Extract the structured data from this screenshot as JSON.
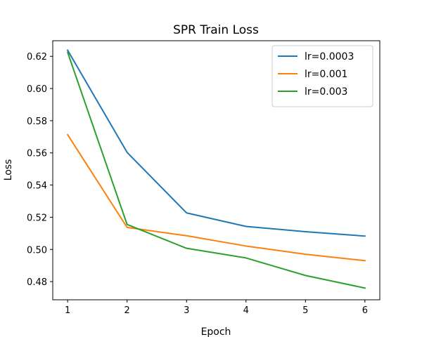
{
  "chart_data": {
    "type": "line",
    "title": "SPR Train Loss",
    "xlabel": "Epoch",
    "ylabel": "Loss",
    "x": [
      1,
      2,
      3,
      4,
      5,
      6
    ],
    "xlim": [
      0.75,
      6.25
    ],
    "ylim": [
      0.4687,
      0.6297
    ],
    "xticks": [
      1,
      2,
      3,
      4,
      5,
      6
    ],
    "xtick_labels": [
      "1",
      "2",
      "3",
      "4",
      "5",
      "6"
    ],
    "yticks": [
      0.48,
      0.5,
      0.52,
      0.54,
      0.56,
      0.58,
      0.6,
      0.62
    ],
    "ytick_labels": [
      "0.48",
      "0.50",
      "0.52",
      "0.54",
      "0.56",
      "0.58",
      "0.60",
      "0.62"
    ],
    "grid": false,
    "legend_position": "top-right",
    "series": [
      {
        "name": "lr=0.0003",
        "color": "#1f77b4",
        "values": [
          0.6238,
          0.5603,
          0.5227,
          0.5143,
          0.511,
          0.5083
        ]
      },
      {
        "name": "lr=0.001",
        "color": "#ff7f0e",
        "values": [
          0.5713,
          0.5137,
          0.5085,
          0.5021,
          0.497,
          0.493
        ]
      },
      {
        "name": "lr=0.003",
        "color": "#2ca02c",
        "values": [
          0.6225,
          0.5155,
          0.5007,
          0.4947,
          0.4838,
          0.476
        ]
      }
    ]
  }
}
